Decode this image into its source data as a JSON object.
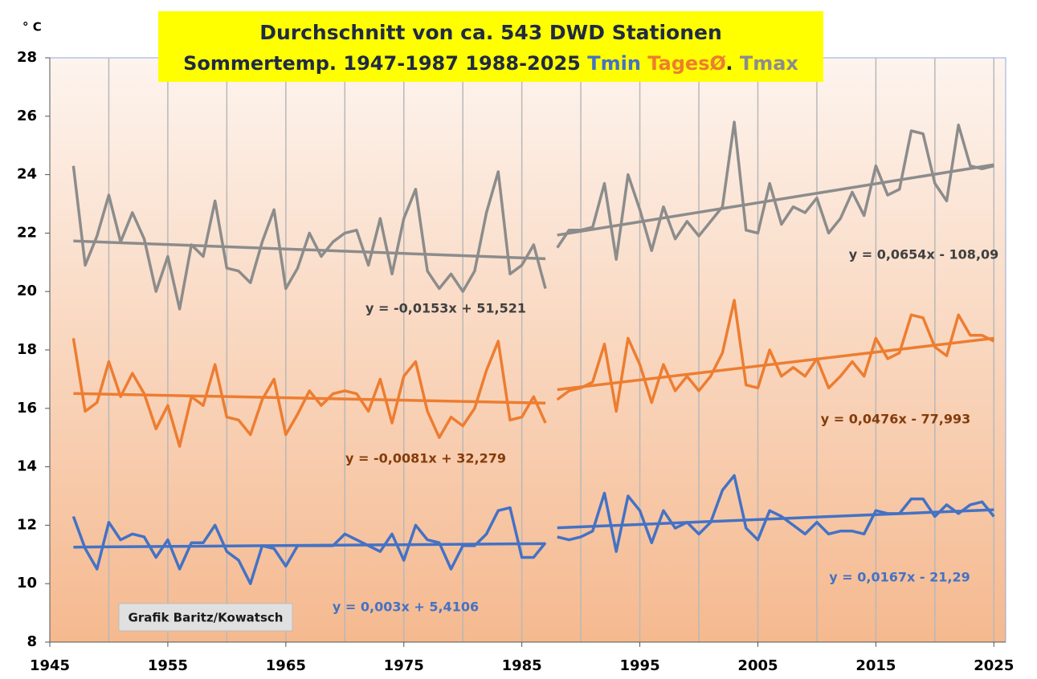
{
  "chart_data": {
    "type": "line",
    "title": "Durchschnitt von ca. 543 DWD Stationen",
    "subtitle": "Sommertemp. 1947-1987  1988-2025",
    "name_separator": ".",
    "y_unit": "° C",
    "annotation": "Grafik Baritz/Kowatsch",
    "xlim": [
      1945,
      2026
    ],
    "xticks": [
      1945,
      1955,
      1965,
      1975,
      1985,
      1995,
      2005,
      2015,
      2025
    ],
    "xgrid": [
      1950,
      1955,
      1960,
      1965,
      1970,
      1975,
      1980,
      1985,
      1990,
      1995,
      2000,
      2005,
      2010,
      2015,
      2020,
      2025
    ],
    "ylim": [
      8,
      28
    ],
    "yticks": [
      8,
      10,
      12,
      14,
      16,
      18,
      20,
      22,
      24,
      26,
      28
    ],
    "series": [
      {
        "name": "Tmin",
        "color": "#4472c4",
        "label_color": "#4472c4",
        "segments": [
          {
            "x": [
              1947,
              1948,
              1949,
              1950,
              1951,
              1952,
              1953,
              1954,
              1955,
              1956,
              1957,
              1958,
              1959,
              1960,
              1961,
              1962,
              1963,
              1964,
              1965,
              1966,
              1967,
              1968,
              1969,
              1970,
              1971,
              1972,
              1973,
              1974,
              1975,
              1976,
              1977,
              1978,
              1979,
              1980,
              1981,
              1982,
              1983,
              1984,
              1985,
              1986,
              1987
            ],
            "values": [
              12.3,
              11.2,
              10.5,
              12.1,
              11.5,
              11.7,
              11.6,
              10.9,
              11.5,
              10.5,
              11.4,
              11.4,
              12.0,
              11.1,
              10.8,
              10.0,
              11.3,
              11.2,
              10.6,
              11.3,
              11.3,
              11.3,
              11.3,
              11.7,
              11.5,
              11.3,
              11.1,
              11.7,
              10.8,
              12.0,
              11.5,
              11.4,
              10.5,
              11.3,
              11.3,
              11.7,
              12.5,
              12.6,
              10.9,
              10.9,
              11.4
            ],
            "trend": {
              "x": [
                1947,
                1987
              ],
              "values": [
                11.25,
                11.37
              ],
              "label": "y = 0,003x + 5,4106"
            }
          },
          {
            "x": [
              1988,
              1989,
              1990,
              1991,
              1992,
              1993,
              1994,
              1995,
              1996,
              1997,
              1998,
              1999,
              2000,
              2001,
              2002,
              2003,
              2004,
              2005,
              2006,
              2007,
              2008,
              2009,
              2010,
              2011,
              2012,
              2013,
              2014,
              2015,
              2016,
              2017,
              2018,
              2019,
              2020,
              2021,
              2022,
              2023,
              2024,
              2025
            ],
            "values": [
              11.6,
              11.5,
              11.6,
              11.8,
              13.1,
              11.1,
              13.0,
              12.5,
              11.4,
              12.5,
              11.9,
              12.1,
              11.7,
              12.1,
              13.2,
              13.7,
              11.9,
              11.5,
              12.5,
              12.3,
              12.0,
              11.7,
              12.1,
              11.7,
              11.8,
              11.8,
              11.7,
              12.5,
              12.4,
              12.4,
              12.9,
              12.9,
              12.3,
              12.7,
              12.4,
              12.7,
              12.8,
              12.3
            ],
            "trend": {
              "x": [
                1988,
                2025
              ],
              "values": [
                11.91,
                12.53
              ],
              "label": "y = 0,0167x - 21,29"
            }
          }
        ]
      },
      {
        "name": "TagesØ",
        "color": "#ed7d31",
        "label_color": "#843c0c",
        "segments": [
          {
            "x": [
              1947,
              1948,
              1949,
              1950,
              1951,
              1952,
              1953,
              1954,
              1955,
              1956,
              1957,
              1958,
              1959,
              1960,
              1961,
              1962,
              1963,
              1964,
              1965,
              1966,
              1967,
              1968,
              1969,
              1970,
              1971,
              1972,
              1973,
              1974,
              1975,
              1976,
              1977,
              1978,
              1979,
              1980,
              1981,
              1982,
              1983,
              1984,
              1985,
              1986,
              1987
            ],
            "values": [
              18.4,
              15.9,
              16.2,
              17.6,
              16.4,
              17.2,
              16.5,
              15.3,
              16.1,
              14.7,
              16.4,
              16.1,
              17.5,
              15.7,
              15.6,
              15.1,
              16.3,
              17.0,
              15.1,
              15.8,
              16.6,
              16.1,
              16.5,
              16.6,
              16.5,
              15.9,
              17.0,
              15.5,
              17.1,
              17.6,
              15.9,
              15.0,
              15.7,
              15.4,
              16.0,
              17.3,
              18.3,
              15.6,
              15.7,
              16.4,
              15.5
            ],
            "trend": {
              "x": [
                1947,
                1987
              ],
              "values": [
                16.51,
                16.18
              ],
              "label": "y = -0,0081x + 32,279"
            }
          },
          {
            "x": [
              1988,
              1989,
              1990,
              1991,
              1992,
              1993,
              1994,
              1995,
              1996,
              1997,
              1998,
              1999,
              2000,
              2001,
              2002,
              2003,
              2004,
              2005,
              2006,
              2007,
              2008,
              2009,
              2010,
              2011,
              2012,
              2013,
              2014,
              2015,
              2016,
              2017,
              2018,
              2019,
              2020,
              2021,
              2022,
              2023,
              2024,
              2025
            ],
            "values": [
              16.3,
              16.6,
              16.7,
              16.9,
              18.2,
              15.9,
              18.4,
              17.5,
              16.2,
              17.5,
              16.6,
              17.1,
              16.6,
              17.1,
              17.9,
              19.7,
              16.8,
              16.7,
              18.0,
              17.1,
              17.4,
              17.1,
              17.7,
              16.7,
              17.1,
              17.6,
              17.1,
              18.4,
              17.7,
              17.9,
              19.2,
              19.1,
              18.1,
              17.8,
              19.2,
              18.5,
              18.5,
              18.3
            ],
            "trend": {
              "x": [
                1988,
                2025
              ],
              "values": [
                16.64,
                18.4
              ],
              "label": "y = 0,0476x - 77,993"
            }
          }
        ]
      },
      {
        "name": "Tmax",
        "color": "#8c8c8c",
        "label_color": "#404040",
        "segments": [
          {
            "x": [
              1947,
              1948,
              1949,
              1950,
              1951,
              1952,
              1953,
              1954,
              1955,
              1956,
              1957,
              1958,
              1959,
              1960,
              1961,
              1962,
              1963,
              1964,
              1965,
              1966,
              1967,
              1968,
              1969,
              1970,
              1971,
              1972,
              1973,
              1974,
              1975,
              1976,
              1977,
              1978,
              1979,
              1980,
              1981,
              1982,
              1983,
              1984,
              1985,
              1986,
              1987
            ],
            "values": [
              24.3,
              20.9,
              21.9,
              23.3,
              21.7,
              22.7,
              21.8,
              20.0,
              21.2,
              19.4,
              21.6,
              21.2,
              23.1,
              20.8,
              20.7,
              20.3,
              21.7,
              22.8,
              20.1,
              20.8,
              22.0,
              21.2,
              21.7,
              22.0,
              22.1,
              20.9,
              22.5,
              20.6,
              22.5,
              23.5,
              20.7,
              20.1,
              20.6,
              20.0,
              20.7,
              22.7,
              24.1,
              20.6,
              20.9,
              21.6,
              20.1
            ],
            "trend": {
              "x": [
                1947,
                1987
              ],
              "values": [
                21.73,
                21.12
              ],
              "label": "y = -0,0153x + 51,521"
            }
          },
          {
            "x": [
              1988,
              1989,
              1990,
              1991,
              1992,
              1993,
              1994,
              1995,
              1996,
              1997,
              1998,
              1999,
              2000,
              2001,
              2002,
              2003,
              2004,
              2005,
              2006,
              2007,
              2008,
              2009,
              2010,
              2011,
              2012,
              2013,
              2014,
              2015,
              2016,
              2017,
              2018,
              2019,
              2020,
              2021,
              2022,
              2023,
              2024,
              2025
            ],
            "values": [
              21.5,
              22.1,
              22.1,
              22.2,
              23.7,
              21.1,
              24.0,
              22.8,
              21.4,
              22.9,
              21.8,
              22.4,
              21.9,
              22.4,
              22.9,
              25.8,
              22.1,
              22.0,
              23.7,
              22.3,
              22.9,
              22.7,
              23.2,
              22.0,
              22.5,
              23.4,
              22.6,
              24.3,
              23.3,
              23.5,
              25.5,
              25.4,
              23.7,
              23.1,
              25.7,
              24.3,
              24.2,
              24.3
            ],
            "trend": {
              "x": [
                1988,
                2025
              ],
              "values": [
                21.93,
                24.34
              ],
              "label": "y = 0,0654x - 108,09"
            }
          }
        ]
      }
    ]
  }
}
